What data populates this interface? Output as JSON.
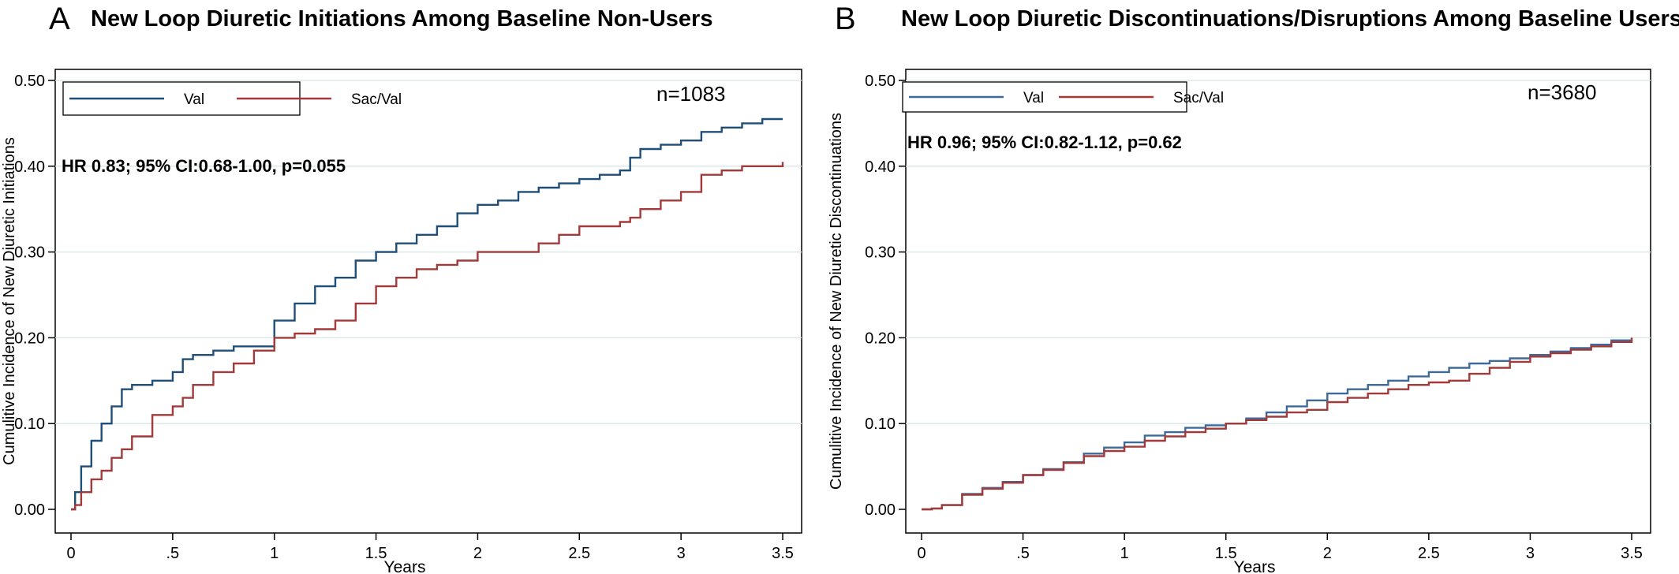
{
  "chart_data": [
    {
      "type": "line",
      "panel_letter": "A",
      "title": "New Loop Diuretic Initiations Among Baseline Non-Users",
      "xlabel": "Years",
      "ylabel": "Cumulitive Incidence of New Diuretic Initiations",
      "xlim": [
        0,
        3.5
      ],
      "ylim": [
        0,
        0.5
      ],
      "x_ticks": [
        "0",
        ".5",
        "1",
        "1.5",
        "2",
        "2.5",
        "3",
        "3.5"
      ],
      "y_ticks": [
        "0.00",
        "0.10",
        "0.20",
        "0.30",
        "0.40",
        "0.50"
      ],
      "grid": true,
      "legend_position": "top-left",
      "n_label": "n=1083",
      "annotation": "HR 0.83; 95% CI:0.68-1.00, p=0.055",
      "series": [
        {
          "name": "Val",
          "color": "#1f4e79",
          "x": [
            0,
            0.02,
            0.05,
            0.1,
            0.15,
            0.2,
            0.25,
            0.3,
            0.4,
            0.5,
            0.55,
            0.6,
            0.7,
            0.8,
            0.9,
            1.0,
            1.1,
            1.2,
            1.3,
            1.4,
            1.5,
            1.6,
            1.7,
            1.8,
            1.9,
            2.0,
            2.1,
            2.2,
            2.3,
            2.4,
            2.5,
            2.6,
            2.7,
            2.75,
            2.8,
            2.9,
            3.0,
            3.1,
            3.2,
            3.3,
            3.4,
            3.5
          ],
          "y": [
            0,
            0.02,
            0.05,
            0.08,
            0.1,
            0.12,
            0.14,
            0.145,
            0.15,
            0.16,
            0.175,
            0.18,
            0.185,
            0.19,
            0.19,
            0.22,
            0.24,
            0.26,
            0.27,
            0.29,
            0.3,
            0.31,
            0.32,
            0.33,
            0.345,
            0.355,
            0.36,
            0.37,
            0.375,
            0.38,
            0.385,
            0.39,
            0.395,
            0.41,
            0.42,
            0.425,
            0.43,
            0.44,
            0.445,
            0.45,
            0.455,
            0.455
          ]
        },
        {
          "name": "Sac/Val",
          "color": "#a33a3a",
          "x": [
            0,
            0.02,
            0.05,
            0.1,
            0.15,
            0.2,
            0.25,
            0.3,
            0.4,
            0.5,
            0.55,
            0.6,
            0.7,
            0.8,
            0.9,
            1.0,
            1.1,
            1.2,
            1.3,
            1.4,
            1.5,
            1.6,
            1.7,
            1.8,
            1.9,
            2.0,
            2.1,
            2.2,
            2.3,
            2.4,
            2.5,
            2.6,
            2.7,
            2.75,
            2.8,
            2.9,
            3.0,
            3.1,
            3.2,
            3.3,
            3.4,
            3.48,
            3.5
          ],
          "y": [
            0,
            0.005,
            0.02,
            0.035,
            0.045,
            0.06,
            0.07,
            0.085,
            0.11,
            0.12,
            0.13,
            0.145,
            0.16,
            0.17,
            0.185,
            0.2,
            0.205,
            0.21,
            0.22,
            0.24,
            0.26,
            0.27,
            0.28,
            0.285,
            0.29,
            0.3,
            0.3,
            0.3,
            0.31,
            0.32,
            0.33,
            0.33,
            0.335,
            0.34,
            0.35,
            0.36,
            0.37,
            0.39,
            0.395,
            0.4,
            0.4,
            0.4,
            0.405
          ]
        }
      ]
    },
    {
      "type": "line",
      "panel_letter": "B",
      "title": "New Loop Diuretic Discontinuations/Disruptions Among Baseline Users",
      "xlabel": "Years",
      "ylabel": "Cumulitive Incidence of New Diuretic Discontinuations",
      "xlim": [
        0,
        3.5
      ],
      "ylim": [
        0,
        0.5
      ],
      "x_ticks": [
        "0",
        ".5",
        "1",
        "1.5",
        "2",
        "2.5",
        "3",
        "3.5"
      ],
      "y_ticks": [
        "0.00",
        "0.10",
        "0.20",
        "0.30",
        "0.40",
        "0.50"
      ],
      "grid": true,
      "legend_position": "top-left",
      "n_label": "n=3680",
      "annotation": "HR 0.96; 95% CI:0.82-1.12, p=0.62",
      "series": [
        {
          "name": "Val",
          "color": "#3d6a99",
          "x": [
            0,
            0.05,
            0.1,
            0.2,
            0.3,
            0.4,
            0.5,
            0.6,
            0.7,
            0.8,
            0.9,
            1.0,
            1.1,
            1.2,
            1.3,
            1.4,
            1.5,
            1.6,
            1.7,
            1.8,
            1.9,
            2.0,
            2.1,
            2.2,
            2.3,
            2.4,
            2.5,
            2.6,
            2.7,
            2.8,
            2.9,
            3.0,
            3.1,
            3.2,
            3.3,
            3.4,
            3.5
          ],
          "y": [
            0,
            0.001,
            0.005,
            0.018,
            0.025,
            0.032,
            0.04,
            0.047,
            0.055,
            0.065,
            0.072,
            0.078,
            0.086,
            0.09,
            0.095,
            0.098,
            0.1,
            0.106,
            0.113,
            0.12,
            0.127,
            0.135,
            0.14,
            0.145,
            0.15,
            0.155,
            0.16,
            0.165,
            0.17,
            0.173,
            0.176,
            0.18,
            0.184,
            0.188,
            0.192,
            0.197,
            0.2
          ]
        },
        {
          "name": "Sac/Val",
          "color": "#a33a3a",
          "x": [
            0,
            0.05,
            0.1,
            0.2,
            0.3,
            0.4,
            0.5,
            0.6,
            0.7,
            0.8,
            0.9,
            1.0,
            1.1,
            1.2,
            1.3,
            1.4,
            1.5,
            1.6,
            1.7,
            1.8,
            1.9,
            2.0,
            2.1,
            2.2,
            2.3,
            2.4,
            2.5,
            2.6,
            2.7,
            2.8,
            2.9,
            3.0,
            3.1,
            3.2,
            3.3,
            3.4,
            3.5
          ],
          "y": [
            0,
            0.001,
            0.005,
            0.017,
            0.024,
            0.031,
            0.04,
            0.046,
            0.054,
            0.062,
            0.068,
            0.073,
            0.08,
            0.085,
            0.09,
            0.094,
            0.1,
            0.104,
            0.108,
            0.113,
            0.116,
            0.125,
            0.13,
            0.135,
            0.14,
            0.145,
            0.148,
            0.15,
            0.158,
            0.165,
            0.172,
            0.178,
            0.182,
            0.186,
            0.19,
            0.195,
            0.2
          ]
        }
      ]
    }
  ]
}
